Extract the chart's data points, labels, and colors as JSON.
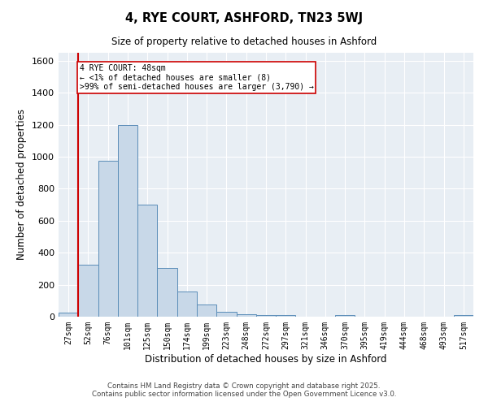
{
  "title": "4, RYE COURT, ASHFORD, TN23 5WJ",
  "subtitle": "Size of property relative to detached houses in Ashford",
  "xlabel": "Distribution of detached houses by size in Ashford",
  "ylabel": "Number of detached properties",
  "categories": [
    "27sqm",
    "52sqm",
    "76sqm",
    "101sqm",
    "125sqm",
    "150sqm",
    "174sqm",
    "199sqm",
    "223sqm",
    "248sqm",
    "272sqm",
    "297sqm",
    "321sqm",
    "346sqm",
    "370sqm",
    "395sqm",
    "419sqm",
    "444sqm",
    "468sqm",
    "493sqm",
    "517sqm"
  ],
  "values": [
    25,
    325,
    975,
    1200,
    700,
    305,
    158,
    75,
    28,
    15,
    10,
    8,
    0,
    0,
    12,
    0,
    0,
    0,
    0,
    0,
    12
  ],
  "bar_color_fill": "#c8d8e8",
  "bar_color_edge": "#5b8db8",
  "marker_color": "#cc0000",
  "annotation_text": "4 RYE COURT: 48sqm\n← <1% of detached houses are smaller (8)\n>99% of semi-detached houses are larger (3,790) →",
  "annotation_box_color": "#ffffff",
  "annotation_box_edge": "#cc0000",
  "ylim": [
    0,
    1650
  ],
  "yticks": [
    0,
    200,
    400,
    600,
    800,
    1000,
    1200,
    1400,
    1600
  ],
  "background_color": "#e8eef4",
  "footer_line1": "Contains HM Land Registry data © Crown copyright and database right 2025.",
  "footer_line2": "Contains public sector information licensed under the Open Government Licence v3.0."
}
